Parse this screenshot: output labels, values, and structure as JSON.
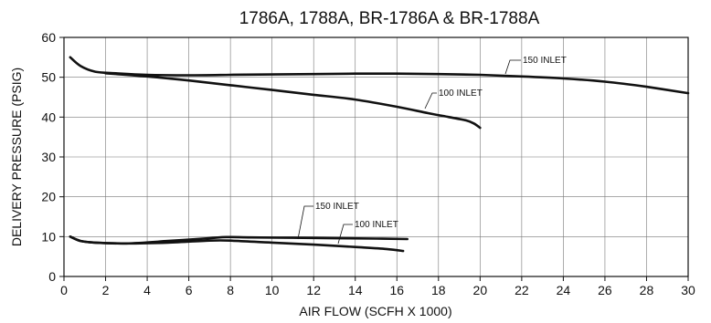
{
  "chart_data": {
    "type": "line",
    "title": "1786A, 1788A, BR-1786A & BR-1788A",
    "xlabel": "AIR FLOW (SCFH X 1000)",
    "ylabel": "DELIVERY PRESSURE (PSIG)",
    "xlim": [
      0,
      30
    ],
    "ylim": [
      0,
      60
    ],
    "xticks": [
      0,
      2,
      4,
      6,
      8,
      10,
      12,
      14,
      16,
      18,
      20,
      22,
      24,
      26,
      28,
      30
    ],
    "yticks": [
      0,
      10,
      20,
      30,
      40,
      50,
      60
    ],
    "grid": true,
    "series": [
      {
        "name": "150 INLET",
        "x": [
          0.3,
          0.8,
          1.5,
          2.5,
          4,
          6,
          8,
          10,
          12,
          14,
          16,
          18,
          20,
          22,
          24,
          26,
          28,
          30
        ],
        "y": [
          55,
          52.8,
          51.4,
          51,
          50.6,
          50.5,
          50.6,
          50.7,
          50.8,
          50.9,
          50.9,
          50.8,
          50.6,
          50.2,
          49.7,
          48.9,
          47.6,
          46
        ]
      },
      {
        "name": "100 INLET",
        "x": [
          2,
          4,
          6,
          8,
          10,
          12,
          14,
          16,
          17.5,
          18.5,
          19.3,
          19.7,
          20
        ],
        "y": [
          51,
          50.2,
          49.2,
          48,
          46.8,
          45.6,
          44.4,
          42.6,
          41,
          40,
          39.2,
          38.4,
          37.3
        ]
      },
      {
        "name": "150 INLET",
        "x": [
          0.3,
          0.8,
          1.5,
          3,
          5,
          7,
          7.8,
          9,
          11,
          13,
          15,
          16.5
        ],
        "y": [
          10,
          8.9,
          8.5,
          8.3,
          8.9,
          9.6,
          9.9,
          9.8,
          9.7,
          9.6,
          9.5,
          9.4
        ]
      },
      {
        "name": "100 INLET",
        "x": [
          0.3,
          0.8,
          1.5,
          3,
          5,
          7,
          8,
          10,
          12,
          14,
          15.5,
          16.3
        ],
        "y": [
          10,
          8.9,
          8.5,
          8.3,
          8.5,
          9.0,
          9.0,
          8.5,
          8.0,
          7.4,
          6.9,
          6.4
        ]
      }
    ],
    "annotations": [
      "150 INLET",
      "100 INLET",
      "150 INLET",
      "100 INLET"
    ]
  }
}
